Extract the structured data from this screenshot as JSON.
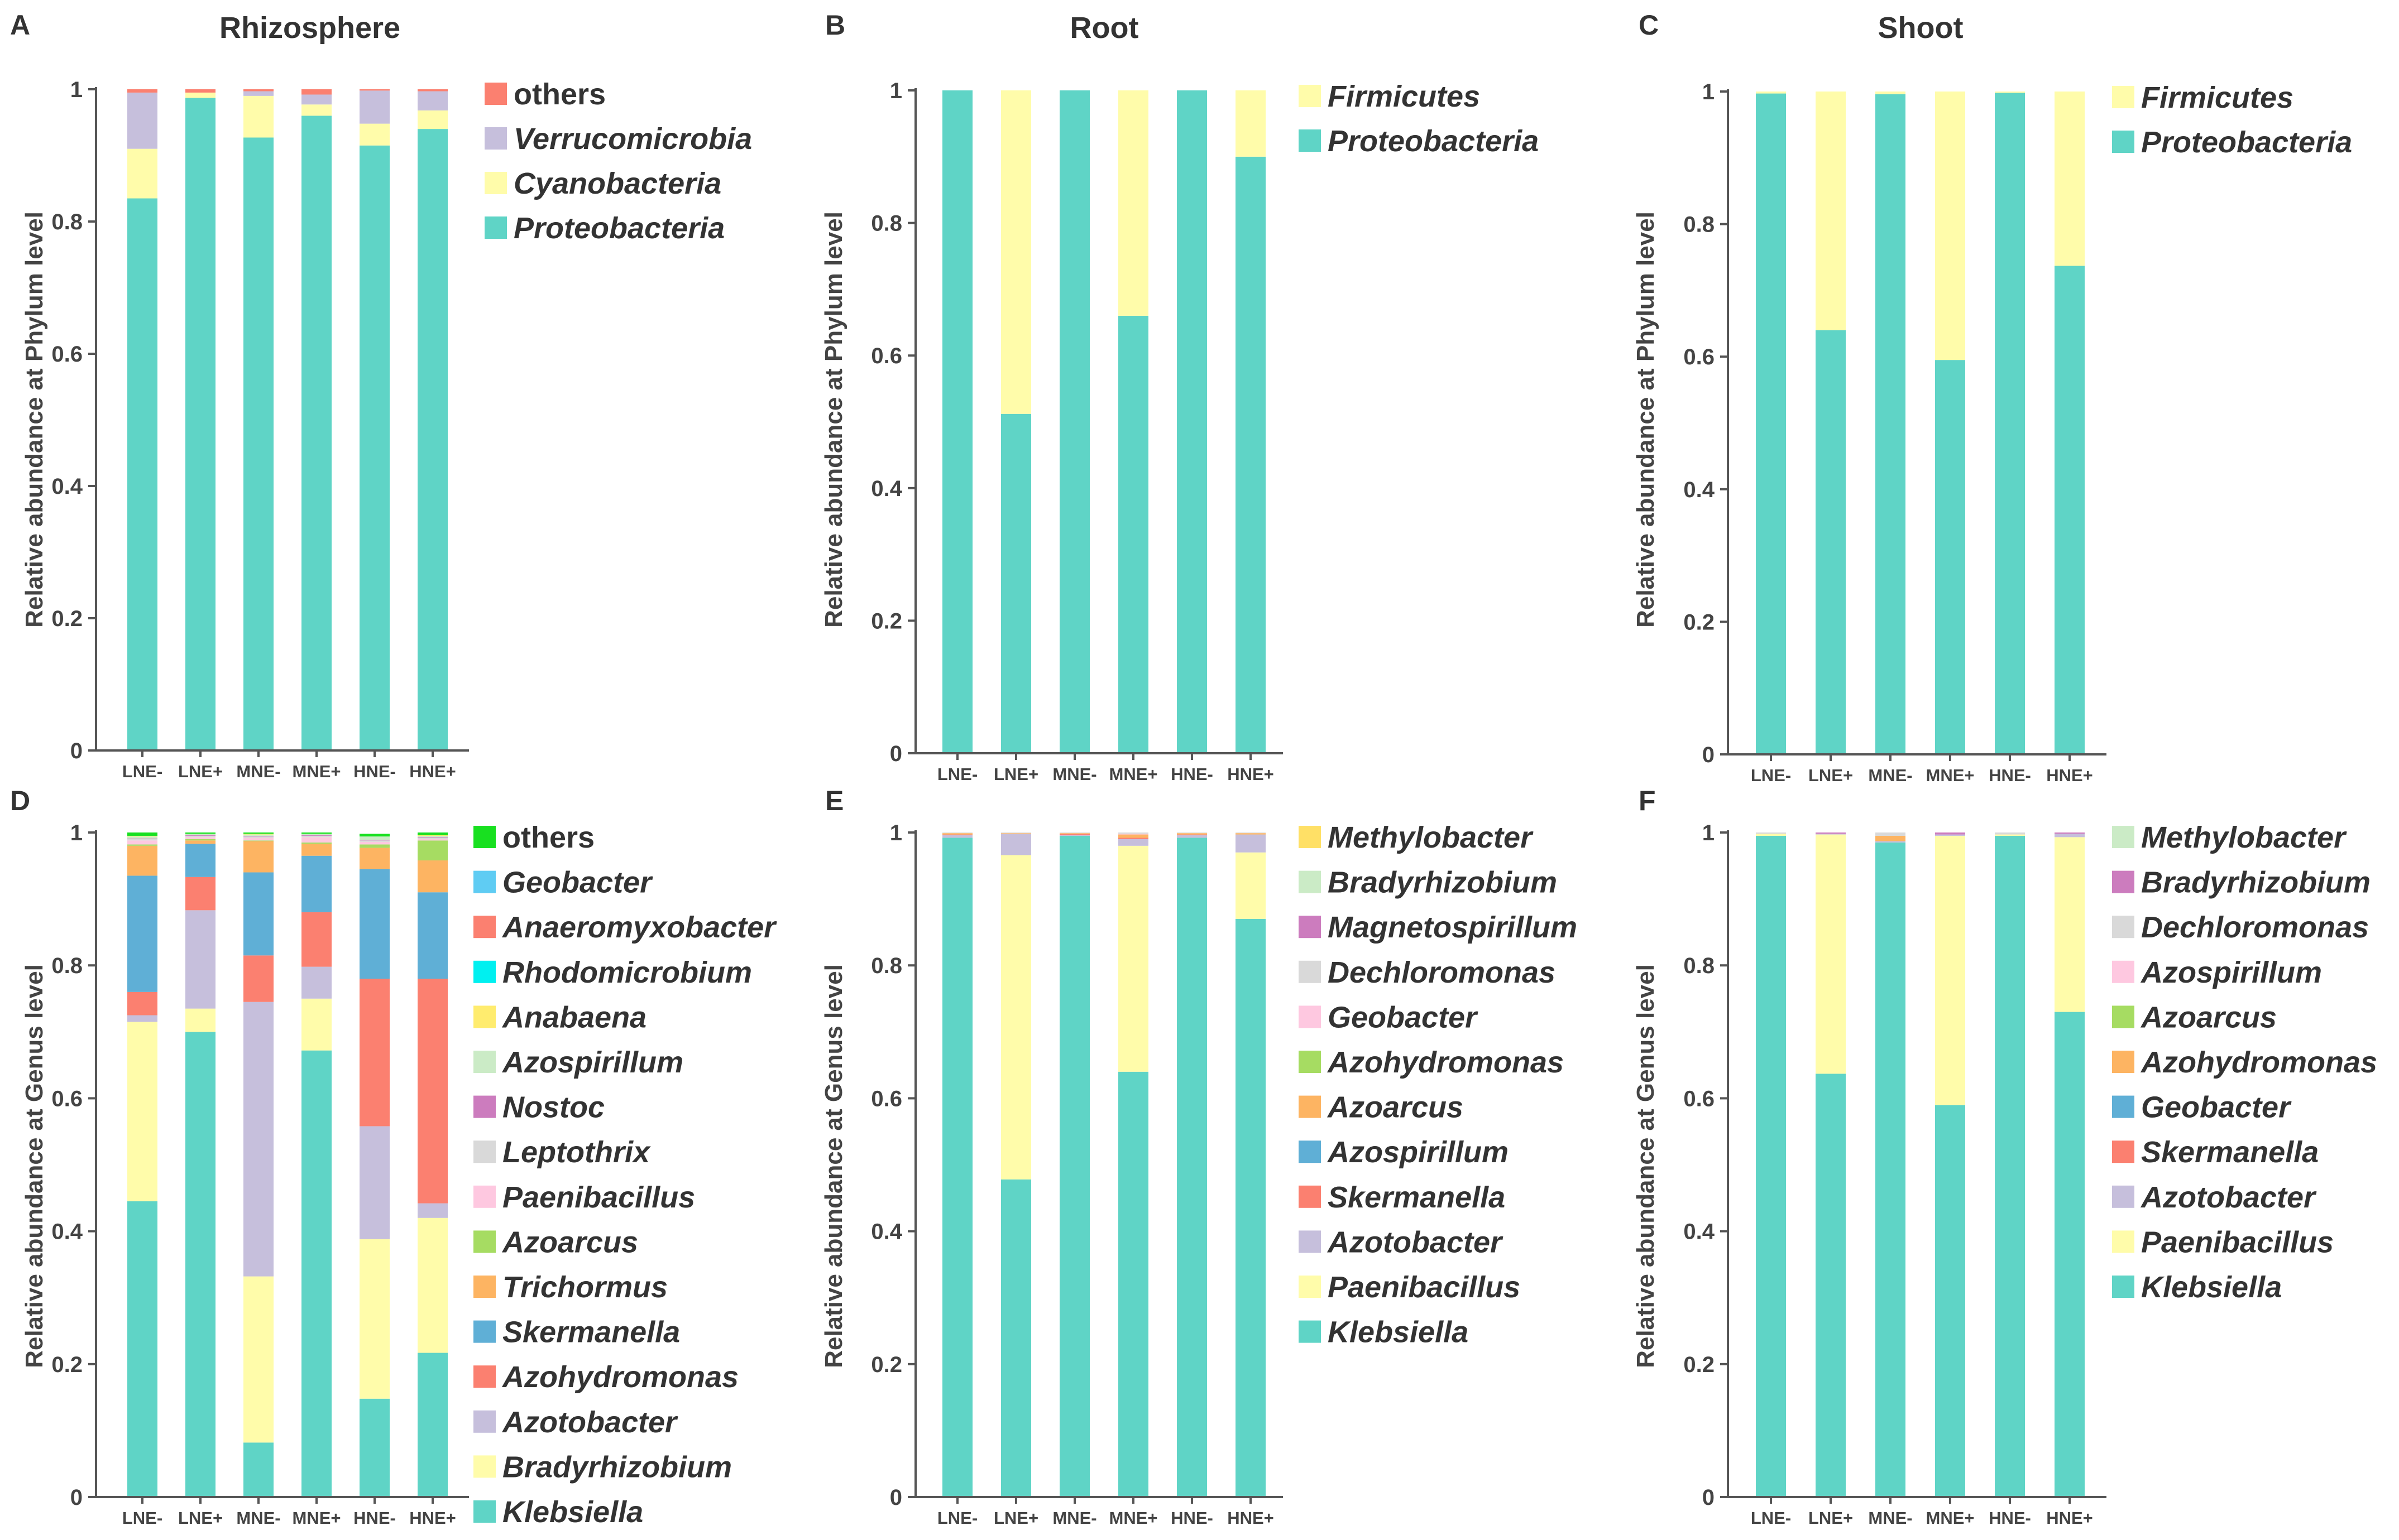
{
  "colors": {
    "Proteobacteria": "#5fd4c6",
    "Cyanobacteria": "#fffcaa",
    "Verrucomicrobia": "#c6bfdc",
    "others": "#fb8070",
    "Firmicutes": "#fffcaa",
    "Klebsiella": "#5fd4c6",
    "Bradyrhizobium": "#fffcaa",
    "Azotobacter": "#c6bfdc",
    "Azohydromonas": "#fb8070",
    "Skermanella": "#5fafd6",
    "Trichormus": "#fdb462",
    "Azoarcus": "#a6dc62",
    "Paenibacillus": "#fec8e0",
    "Leptothrix": "#d9d9d9",
    "Nostoc": "#cc7cbe",
    "Azospirillum": "#cbebc6",
    "Anabaena": "#ffec6e",
    "Rhodomicrobium": "#00f0f0",
    "Anaeromyxobacter": "#fb8070",
    "Geobacter": "#5fccf3",
    "genus_others": "#18e020",
    "E_Methylobacter": "#ffe066",
    "E_Bradyrhizobium": "#cbebc6",
    "E_Magnetospirillum": "#cc7cbe",
    "E_Dechloromonas": "#d9d9d9",
    "E_Geobacter": "#fec8e0",
    "E_Azohydromonas": "#a6dc62",
    "E_Azoarcus": "#fdb462",
    "E_Azospirillum": "#5fafd6",
    "E_Skermanella": "#fb8070",
    "E_Azotobacter": "#c6bfdc",
    "E_Paenibacillus": "#fffcaa",
    "E_Klebsiella": "#5fd4c6",
    "F_Methylobacter": "#cbebc6",
    "F_Bradyrhizobium": "#cc7cbe",
    "F_Dechloromonas": "#d9d9d9",
    "F_Azospirillum": "#fec8e0",
    "F_Azoarcus": "#a6dc62",
    "F_Azohydromonas": "#fdb462",
    "F_Geobacter": "#5fafd6",
    "F_Skermanella": "#fb8070",
    "F_Azotobacter": "#c6bfdc",
    "F_Paenibacillus": "#fffcaa",
    "F_Klebsiella": "#5fd4c6"
  },
  "chart_data": [
    {
      "panel": "A",
      "title": "Rhizosphere",
      "type": "bar",
      "stacked": true,
      "ylabel": "Relative abundance at Phylum level",
      "ylim": [
        0,
        1
      ],
      "yticks": [
        "0",
        "0.2",
        "0.4",
        "0.6",
        "0.8",
        "1"
      ],
      "categories": [
        "LNE-",
        "LNE+",
        "MNE-",
        "MNE+",
        "HNE-",
        "HNE+"
      ],
      "legend_order": [
        "others",
        "Verrucomicrobia",
        "Cyanobacteria",
        "Proteobacteria"
      ],
      "series": [
        {
          "name": "Proteobacteria",
          "color_key": "Proteobacteria",
          "values": [
            0.835,
            0.987,
            0.927,
            0.96,
            0.915,
            0.94
          ]
        },
        {
          "name": "Cyanobacteria",
          "color_key": "Cyanobacteria",
          "values": [
            0.075,
            0.008,
            0.063,
            0.017,
            0.033,
            0.028
          ]
        },
        {
          "name": "Verrucomicrobia",
          "color_key": "Verrucomicrobia",
          "values": [
            0.085,
            0.0,
            0.007,
            0.015,
            0.05,
            0.029
          ]
        },
        {
          "name": "others",
          "color_key": "others",
          "values": [
            0.005,
            0.005,
            0.003,
            0.008,
            0.002,
            0.003
          ]
        }
      ]
    },
    {
      "panel": "B",
      "title": "Root",
      "type": "bar",
      "stacked": true,
      "ylabel": "Relative abundance at Phylum level",
      "ylim": [
        0,
        1
      ],
      "yticks": [
        "0",
        "0.2",
        "0.4",
        "0.6",
        "0.8",
        "1"
      ],
      "categories": [
        "LNE-",
        "LNE+",
        "MNE-",
        "MNE+",
        "HNE-",
        "HNE+"
      ],
      "legend_order": [
        "Firmicutes",
        "Proteobacteria"
      ],
      "series": [
        {
          "name": "Proteobacteria",
          "color_key": "Proteobacteria",
          "values": [
            1.0,
            0.512,
            1.0,
            0.66,
            1.0,
            0.9
          ]
        },
        {
          "name": "Firmicutes",
          "color_key": "Firmicutes",
          "values": [
            0.0,
            0.488,
            0.0,
            0.34,
            0.0,
            0.1
          ]
        }
      ]
    },
    {
      "panel": "C",
      "title": "Shoot",
      "type": "bar",
      "stacked": true,
      "ylabel": "Relative abundance at Phylum level",
      "ylim": [
        0,
        1
      ],
      "yticks": [
        "0",
        "0.2",
        "0.4",
        "0.6",
        "0.8",
        "1"
      ],
      "categories": [
        "LNE-",
        "LNE+",
        "MNE-",
        "MNE+",
        "HNE-",
        "HNE+"
      ],
      "legend_order": [
        "Firmicutes",
        "Proteobacteria"
      ],
      "series": [
        {
          "name": "Proteobacteria",
          "color_key": "Proteobacteria",
          "values": [
            0.997,
            0.64,
            0.996,
            0.595,
            0.998,
            0.737
          ]
        },
        {
          "name": "Firmicutes",
          "color_key": "Firmicutes",
          "values": [
            0.003,
            0.36,
            0.004,
            0.405,
            0.002,
            0.263
          ]
        }
      ]
    },
    {
      "panel": "D",
      "title": "",
      "type": "bar",
      "stacked": true,
      "ylabel": "Relative abundance at Genus level",
      "ylim": [
        0,
        1
      ],
      "yticks": [
        "0",
        "0.2",
        "0.4",
        "0.6",
        "0.8",
        "1"
      ],
      "categories": [
        "LNE-",
        "LNE+",
        "MNE-",
        "MNE+",
        "HNE-",
        "HNE+"
      ],
      "legend_order": [
        "others",
        "Geobacter",
        "Anaeromyxobacter",
        "Rhodomicrobium",
        "Anabaena",
        "Azospirillum",
        "Nostoc",
        "Leptothrix",
        "Paenibacillus",
        "Azoarcus",
        "Trichormus",
        "Skermanella",
        "Azohydromonas",
        "Azotobacter",
        "Bradyrhizobium",
        "Klebsiella"
      ],
      "series": [
        {
          "name": "Klebsiella",
          "color_key": "Klebsiella",
          "values": [
            0.445,
            0.7,
            0.082,
            0.672,
            0.148,
            0.217
          ]
        },
        {
          "name": "Bradyrhizobium",
          "color_key": "Bradyrhizobium",
          "values": [
            0.27,
            0.035,
            0.25,
            0.078,
            0.24,
            0.203
          ]
        },
        {
          "name": "Azotobacter",
          "color_key": "Azotobacter",
          "values": [
            0.01,
            0.148,
            0.413,
            0.048,
            0.17,
            0.022
          ]
        },
        {
          "name": "Azohydromonas",
          "color_key": "Azohydromonas",
          "values": [
            0.035,
            0.05,
            0.07,
            0.082,
            0.222,
            0.338
          ]
        },
        {
          "name": "Skermanella",
          "color_key": "Skermanella",
          "values": [
            0.175,
            0.05,
            0.125,
            0.085,
            0.165,
            0.13
          ]
        },
        {
          "name": "Trichormus",
          "color_key": "Trichormus",
          "values": [
            0.045,
            0.005,
            0.047,
            0.018,
            0.032,
            0.048
          ]
        },
        {
          "name": "Azoarcus",
          "color_key": "Azoarcus",
          "values": [
            0.002,
            0.002,
            0.001,
            0.002,
            0.005,
            0.03
          ]
        },
        {
          "name": "Paenibacillus",
          "color_key": "Paenibacillus",
          "values": [
            0.006,
            0.003,
            0.004,
            0.008,
            0.004,
            0.002
          ]
        },
        {
          "name": "Leptothrix",
          "color_key": "Leptothrix",
          "values": [
            0.002,
            0.002,
            0.002,
            0.002,
            0.002,
            0.002
          ]
        },
        {
          "name": "Nostoc",
          "color_key": "Nostoc",
          "values": [
            0.001,
            0.001,
            0.001,
            0.001,
            0.001,
            0.001
          ]
        },
        {
          "name": "Azospirillum",
          "color_key": "Azospirillum",
          "values": [
            0.003,
            0.002,
            0.002,
            0.002,
            0.005,
            0.002
          ]
        },
        {
          "name": "Anabaena",
          "color_key": "Anabaena",
          "values": [
            0.001,
            0.0,
            0.001,
            0.0,
            0.0,
            0.001
          ]
        },
        {
          "name": "Rhodomicrobium",
          "color_key": "Rhodomicrobium",
          "values": [
            0.0,
            0.0,
            0.0,
            0.0,
            0.0,
            0.0
          ]
        },
        {
          "name": "Anaeromyxobacter",
          "color_key": "Anaeromyxobacter",
          "values": [
            0.0,
            0.0,
            0.0,
            0.0,
            0.0,
            0.0
          ]
        },
        {
          "name": "Geobacter",
          "color_key": "Geobacter",
          "values": [
            0.0,
            0.0,
            0.0,
            0.0,
            0.0,
            0.0
          ]
        },
        {
          "name": "others",
          "color_key": "genus_others",
          "values": [
            0.005,
            0.002,
            0.002,
            0.002,
            0.004,
            0.004
          ]
        }
      ]
    },
    {
      "panel": "E",
      "title": "",
      "type": "bar",
      "stacked": true,
      "ylabel": "Relative abundance at Genus level",
      "ylim": [
        0,
        1
      ],
      "yticks": [
        "0",
        "0.2",
        "0.4",
        "0.6",
        "0.8",
        "1"
      ],
      "categories": [
        "LNE-",
        "LNE+",
        "MNE-",
        "MNE+",
        "HNE-",
        "HNE+"
      ],
      "legend_order": [
        "Methylobacter",
        "Bradyrhizobium",
        "Magnetospirillum",
        "Dechloromonas",
        "Geobacter",
        "Azohydromonas",
        "Azoarcus",
        "Azospirillum",
        "Skermanella",
        "Azotobacter",
        "Paenibacillus",
        "Klebsiella"
      ],
      "series": [
        {
          "name": "Klebsiella",
          "color_key": "E_Klebsiella",
          "values": [
            0.992,
            0.478,
            0.995,
            0.64,
            0.992,
            0.87
          ]
        },
        {
          "name": "Paenibacillus",
          "color_key": "E_Paenibacillus",
          "values": [
            0.0,
            0.488,
            0.0,
            0.34,
            0.0,
            0.1
          ]
        },
        {
          "name": "Azotobacter",
          "color_key": "E_Azotobacter",
          "values": [
            0.004,
            0.032,
            0.001,
            0.01,
            0.004,
            0.027
          ]
        },
        {
          "name": "Skermanella",
          "color_key": "E_Skermanella",
          "values": [
            0.001,
            0.0,
            0.002,
            0.002,
            0.001,
            0.0
          ]
        },
        {
          "name": "Azospirillum",
          "color_key": "E_Azospirillum",
          "values": [
            0.0,
            0.0,
            0.0,
            0.0,
            0.0,
            0.0
          ]
        },
        {
          "name": "Azoarcus",
          "color_key": "E_Azoarcus",
          "values": [
            0.002,
            0.001,
            0.001,
            0.005,
            0.002,
            0.002
          ]
        },
        {
          "name": "Azohydromonas",
          "color_key": "E_Azohydromonas",
          "values": [
            0.0,
            0.0,
            0.0,
            0.0,
            0.0,
            0.0
          ]
        },
        {
          "name": "Geobacter",
          "color_key": "E_Geobacter",
          "values": [
            0.0,
            0.0,
            0.0,
            0.001,
            0.0,
            0.0
          ]
        },
        {
          "name": "Dechloromonas",
          "color_key": "E_Dechloromonas",
          "values": [
            0.001,
            0.001,
            0.001,
            0.002,
            0.001,
            0.001
          ]
        },
        {
          "name": "Magnetospirillum",
          "color_key": "E_Magnetospirillum",
          "values": [
            0.0,
            0.0,
            0.0,
            0.0,
            0.0,
            0.0
          ]
        },
        {
          "name": "Bradyrhizobium",
          "color_key": "E_Bradyrhizobium",
          "values": [
            0.0,
            0.0,
            0.0,
            0.0,
            0.0,
            0.0
          ]
        },
        {
          "name": "Methylobacter",
          "color_key": "E_Methylobacter",
          "values": [
            0.0,
            0.0,
            0.0,
            0.0,
            0.0,
            0.0
          ]
        }
      ]
    },
    {
      "panel": "F",
      "title": "",
      "type": "bar",
      "stacked": true,
      "ylabel": "Relative abundance at Genus level",
      "ylim": [
        0,
        1
      ],
      "yticks": [
        "0",
        "0.2",
        "0.4",
        "0.6",
        "0.8",
        "1"
      ],
      "categories": [
        "LNE-",
        "LNE+",
        "MNE-",
        "MNE+",
        "HNE-",
        "HNE+"
      ],
      "legend_order": [
        "Methylobacter",
        "Bradyrhizobium",
        "Dechloromonas",
        "Azospirillum",
        "Azoarcus",
        "Azohydromonas",
        "Geobacter",
        "Skermanella",
        "Azotobacter",
        "Paenibacillus",
        "Klebsiella"
      ],
      "series": [
        {
          "name": "Klebsiella",
          "color_key": "F_Klebsiella",
          "values": [
            0.995,
            0.637,
            0.985,
            0.59,
            0.995,
            0.73
          ]
        },
        {
          "name": "Paenibacillus",
          "color_key": "F_Paenibacillus",
          "values": [
            0.003,
            0.36,
            0.0,
            0.405,
            0.002,
            0.263
          ]
        },
        {
          "name": "Azotobacter",
          "color_key": "F_Azotobacter",
          "values": [
            0.0,
            0.001,
            0.002,
            0.002,
            0.0,
            0.005
          ]
        },
        {
          "name": "Skermanella",
          "color_key": "F_Skermanella",
          "values": [
            0.0,
            0.0,
            0.0,
            0.0,
            0.0,
            0.0
          ]
        },
        {
          "name": "Geobacter",
          "color_key": "F_Geobacter",
          "values": [
            0.0,
            0.0,
            0.0,
            0.0,
            0.0,
            0.0
          ]
        },
        {
          "name": "Azohydromonas",
          "color_key": "F_Azohydromonas",
          "values": [
            0.0,
            0.0,
            0.008,
            0.0,
            0.0,
            0.0
          ]
        },
        {
          "name": "Azoarcus",
          "color_key": "F_Azoarcus",
          "values": [
            0.0,
            0.0,
            0.0,
            0.0,
            0.0,
            0.0
          ]
        },
        {
          "name": "Azospirillum",
          "color_key": "F_Azospirillum",
          "values": [
            0.0,
            0.0,
            0.0,
            0.0,
            0.0,
            0.0
          ]
        },
        {
          "name": "Dechloromonas",
          "color_key": "F_Dechloromonas",
          "values": [
            0.002,
            0.0,
            0.005,
            0.0,
            0.003,
            0.0
          ]
        },
        {
          "name": "Bradyrhizobium",
          "color_key": "F_Bradyrhizobium",
          "values": [
            0.0,
            0.002,
            0.0,
            0.003,
            0.0,
            0.002
          ]
        },
        {
          "name": "Methylobacter",
          "color_key": "F_Methylobacter",
          "values": [
            0.0,
            0.0,
            0.0,
            0.0,
            0.0,
            0.0
          ]
        }
      ]
    }
  ]
}
